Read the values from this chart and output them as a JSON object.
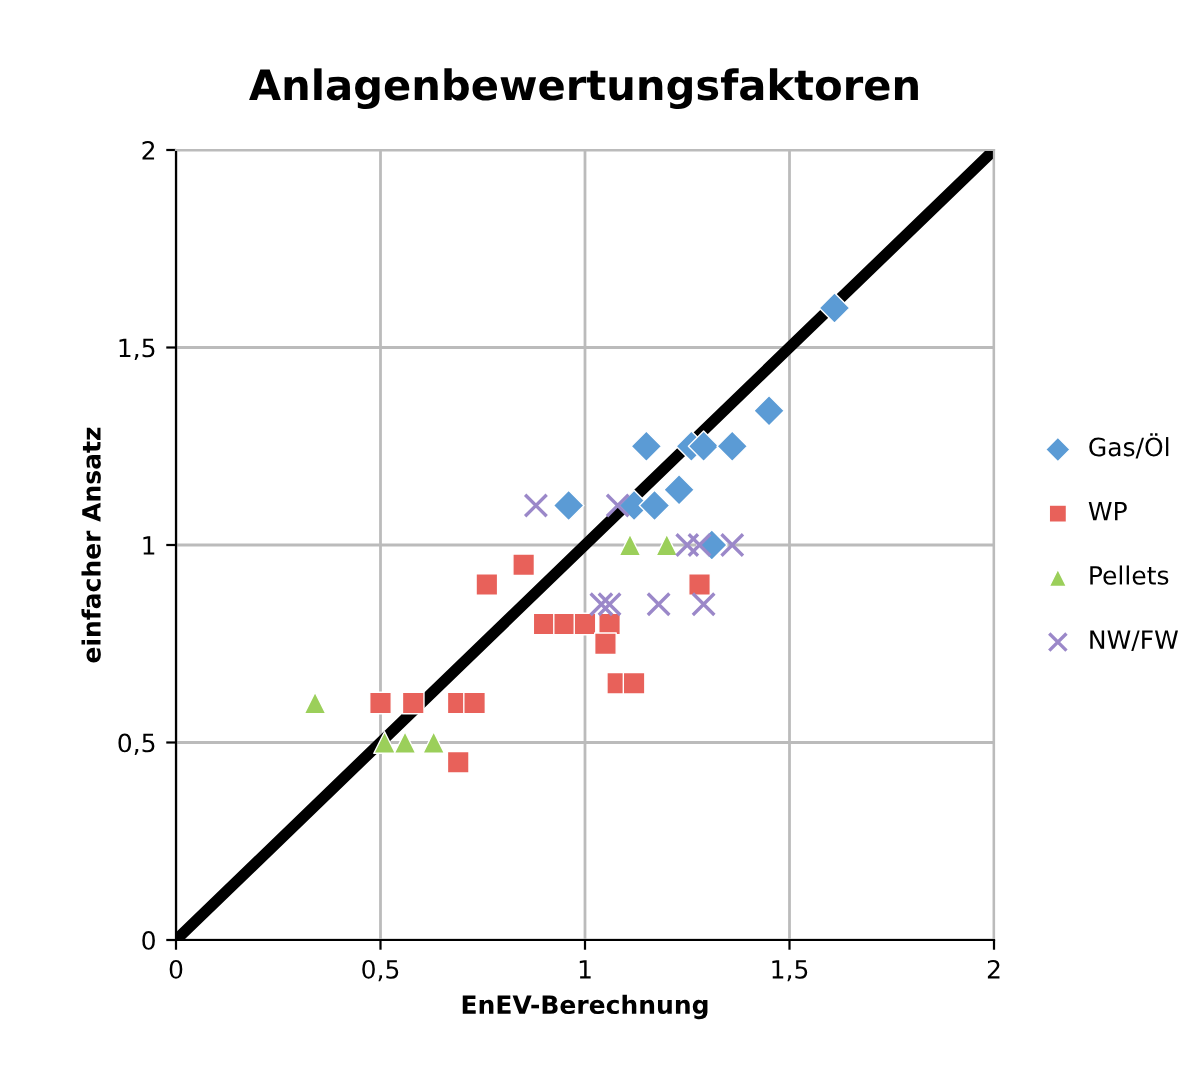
{
  "chart_data": {
    "type": "scatter",
    "title": "Anlagenbewertungsfaktoren",
    "xlabel": "EnEV-Berechnung",
    "ylabel": "einfacher Ansatz",
    "xlim": [
      0,
      2
    ],
    "ylim": [
      0,
      2
    ],
    "xticks": [
      0,
      {
        "value": 0.5,
        "label": "0,5"
      },
      1,
      {
        "value": 1.5,
        "label": "1,5"
      },
      2
    ],
    "yticks": [
      0,
      {
        "value": 0.5,
        "label": "0,5"
      },
      1,
      {
        "value": 1.5,
        "label": "1,5"
      },
      2
    ],
    "grid": true,
    "legend": "right",
    "series": [
      {
        "type": "line",
        "color": "#000000",
        "x": [
          0,
          2
        ],
        "values": [
          0,
          2
        ],
        "marker": "none"
      },
      {
        "name": "Gas/Öl",
        "color": "#5b9bd5",
        "marker": "diamond",
        "x": [
          1.15,
          1.26,
          1.29,
          1.36,
          1.45,
          1.61,
          1.23,
          0.96,
          1.12,
          1.17,
          1.31
        ],
        "values": [
          1.25,
          1.25,
          1.25,
          1.25,
          1.34,
          1.6,
          1.14,
          1.1,
          1.1,
          1.1,
          1.0
        ]
      },
      {
        "name": "WP",
        "color": "#e8615a",
        "marker": "square",
        "x": [
          0.85,
          0.76,
          0.9,
          0.95,
          1.0,
          1.06,
          1.05,
          1.08,
          1.12,
          0.5,
          0.58,
          0.69,
          0.73,
          0.69,
          1.28
        ],
        "values": [
          0.95,
          0.9,
          0.8,
          0.8,
          0.8,
          0.8,
          0.75,
          0.65,
          0.65,
          0.6,
          0.6,
          0.6,
          0.6,
          0.45,
          0.9
        ]
      },
      {
        "name": "Pellets",
        "color": "#9bcf5a",
        "marker": "triangle",
        "x": [
          0.34,
          1.11,
          1.2,
          0.51,
          0.56,
          0.63
        ],
        "values": [
          0.6,
          1.0,
          1.0,
          0.5,
          0.5,
          0.5
        ]
      },
      {
        "name": "NW/FW",
        "color": "#9b88c9",
        "marker": "cross",
        "x": [
          0.88,
          1.08,
          1.25,
          1.28,
          1.36,
          1.04,
          1.06,
          1.18,
          1.29
        ],
        "values": [
          1.1,
          1.1,
          1.0,
          1.0,
          1.0,
          0.85,
          0.85,
          0.85,
          0.85
        ]
      }
    ]
  }
}
